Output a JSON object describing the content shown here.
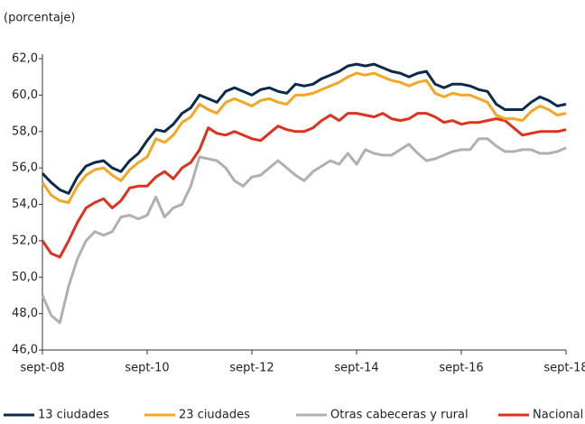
{
  "chart_data": {
    "type": "line",
    "y_axis_label": "(porcentaje)",
    "categories": [
      "sept-08",
      null,
      null,
      null,
      null,
      null,
      null,
      null,
      null,
      null,
      null,
      null,
      "sept-10",
      null,
      null,
      null,
      null,
      null,
      null,
      null,
      null,
      null,
      null,
      null,
      "sept-12",
      null,
      null,
      null,
      null,
      null,
      null,
      null,
      null,
      null,
      null,
      null,
      "sept-14",
      null,
      null,
      null,
      null,
      null,
      null,
      null,
      null,
      null,
      null,
      null,
      "sept-16",
      null,
      null,
      null,
      null,
      null,
      null,
      null,
      null,
      null,
      null,
      null,
      "sept-18"
    ],
    "series": [
      {
        "name": "13 ciudades",
        "color": "#0d2a4a",
        "values": [
          55.7,
          55.2,
          54.8,
          54.6,
          55.5,
          56.1,
          56.3,
          56.4,
          56.0,
          55.8,
          56.4,
          56.8,
          57.5,
          58.1,
          58.0,
          58.4,
          59.0,
          59.3,
          60.0,
          59.8,
          59.6,
          60.2,
          60.4,
          60.2,
          60.0,
          60.3,
          60.4,
          60.2,
          60.1,
          60.6,
          60.5,
          60.6,
          60.9,
          61.1,
          61.3,
          61.6,
          61.7,
          61.6,
          61.7,
          61.5,
          61.3,
          61.2,
          61.0,
          61.2,
          61.3,
          60.6,
          60.4,
          60.6,
          60.6,
          60.5,
          60.3,
          60.2,
          59.5,
          59.2,
          59.2,
          59.2,
          59.6,
          59.9,
          59.7,
          59.4,
          59.5
        ]
      },
      {
        "name": "23 ciudades",
        "color": "#f5a623",
        "values": [
          55.2,
          54.5,
          54.2,
          54.1,
          55.0,
          55.6,
          55.9,
          56.0,
          55.6,
          55.3,
          55.9,
          56.3,
          56.6,
          57.6,
          57.4,
          57.8,
          58.5,
          58.8,
          59.5,
          59.2,
          59.0,
          59.6,
          59.8,
          59.6,
          59.4,
          59.7,
          59.8,
          59.6,
          59.5,
          60.0,
          60.0,
          60.1,
          60.3,
          60.5,
          60.7,
          61.0,
          61.2,
          61.1,
          61.2,
          61.0,
          60.8,
          60.7,
          60.5,
          60.7,
          60.8,
          60.1,
          59.9,
          60.1,
          60.0,
          60.0,
          59.8,
          59.6,
          58.9,
          58.7,
          58.7,
          58.6,
          59.1,
          59.4,
          59.2,
          58.9,
          59.0
        ]
      },
      {
        "name": "Otras cabeceras y rural",
        "color": "#b0b0b0",
        "values": [
          49.0,
          47.9,
          47.5,
          49.5,
          51.0,
          52.0,
          52.5,
          52.3,
          52.5,
          53.3,
          53.4,
          53.2,
          53.4,
          54.4,
          53.3,
          53.8,
          54.0,
          55.0,
          56.6,
          56.5,
          56.4,
          56.0,
          55.3,
          55.0,
          55.5,
          55.6,
          56.0,
          56.4,
          56.0,
          55.6,
          55.3,
          55.8,
          56.1,
          56.4,
          56.2,
          56.8,
          56.2,
          57.0,
          56.8,
          56.7,
          56.7,
          57.0,
          57.3,
          56.8,
          56.4,
          56.5,
          56.7,
          56.9,
          57.0,
          57.0,
          57.6,
          57.6,
          57.2,
          56.9,
          56.9,
          57.0,
          57.0,
          56.8,
          56.8,
          56.9,
          57.1
        ]
      },
      {
        "name": "Nacional",
        "color": "#e0301e",
        "values": [
          52.0,
          51.3,
          51.1,
          52.0,
          53.0,
          53.8,
          54.1,
          54.3,
          53.8,
          54.2,
          54.9,
          55.0,
          55.0,
          55.5,
          55.8,
          55.4,
          56.0,
          56.3,
          57.0,
          58.2,
          57.9,
          57.8,
          58.0,
          57.8,
          57.6,
          57.5,
          57.9,
          58.3,
          58.1,
          58.0,
          58.0,
          58.2,
          58.6,
          58.9,
          58.6,
          59.0,
          59.0,
          58.9,
          58.8,
          59.0,
          58.7,
          58.6,
          58.7,
          59.0,
          59.0,
          58.8,
          58.5,
          58.6,
          58.4,
          58.5,
          58.5,
          58.6,
          58.7,
          58.6,
          58.2,
          57.8,
          57.9,
          58.0,
          58.0,
          58.0,
          58.1
        ]
      }
    ],
    "ylim": [
      46,
      62
    ],
    "yticks": [
      {
        "value": 46,
        "label": "46,0"
      },
      {
        "value": 48,
        "label": "48,0"
      },
      {
        "value": 50,
        "label": "50,0"
      },
      {
        "value": 52,
        "label": "52,0"
      },
      {
        "value": 54,
        "label": "54,0"
      },
      {
        "value": 56,
        "label": "56,0"
      },
      {
        "value": 58,
        "label": "58,0"
      },
      {
        "value": 60,
        "label": "60,0"
      },
      {
        "value": 62,
        "label": "62,0"
      }
    ],
    "grid": false,
    "legend": "bottom"
  }
}
